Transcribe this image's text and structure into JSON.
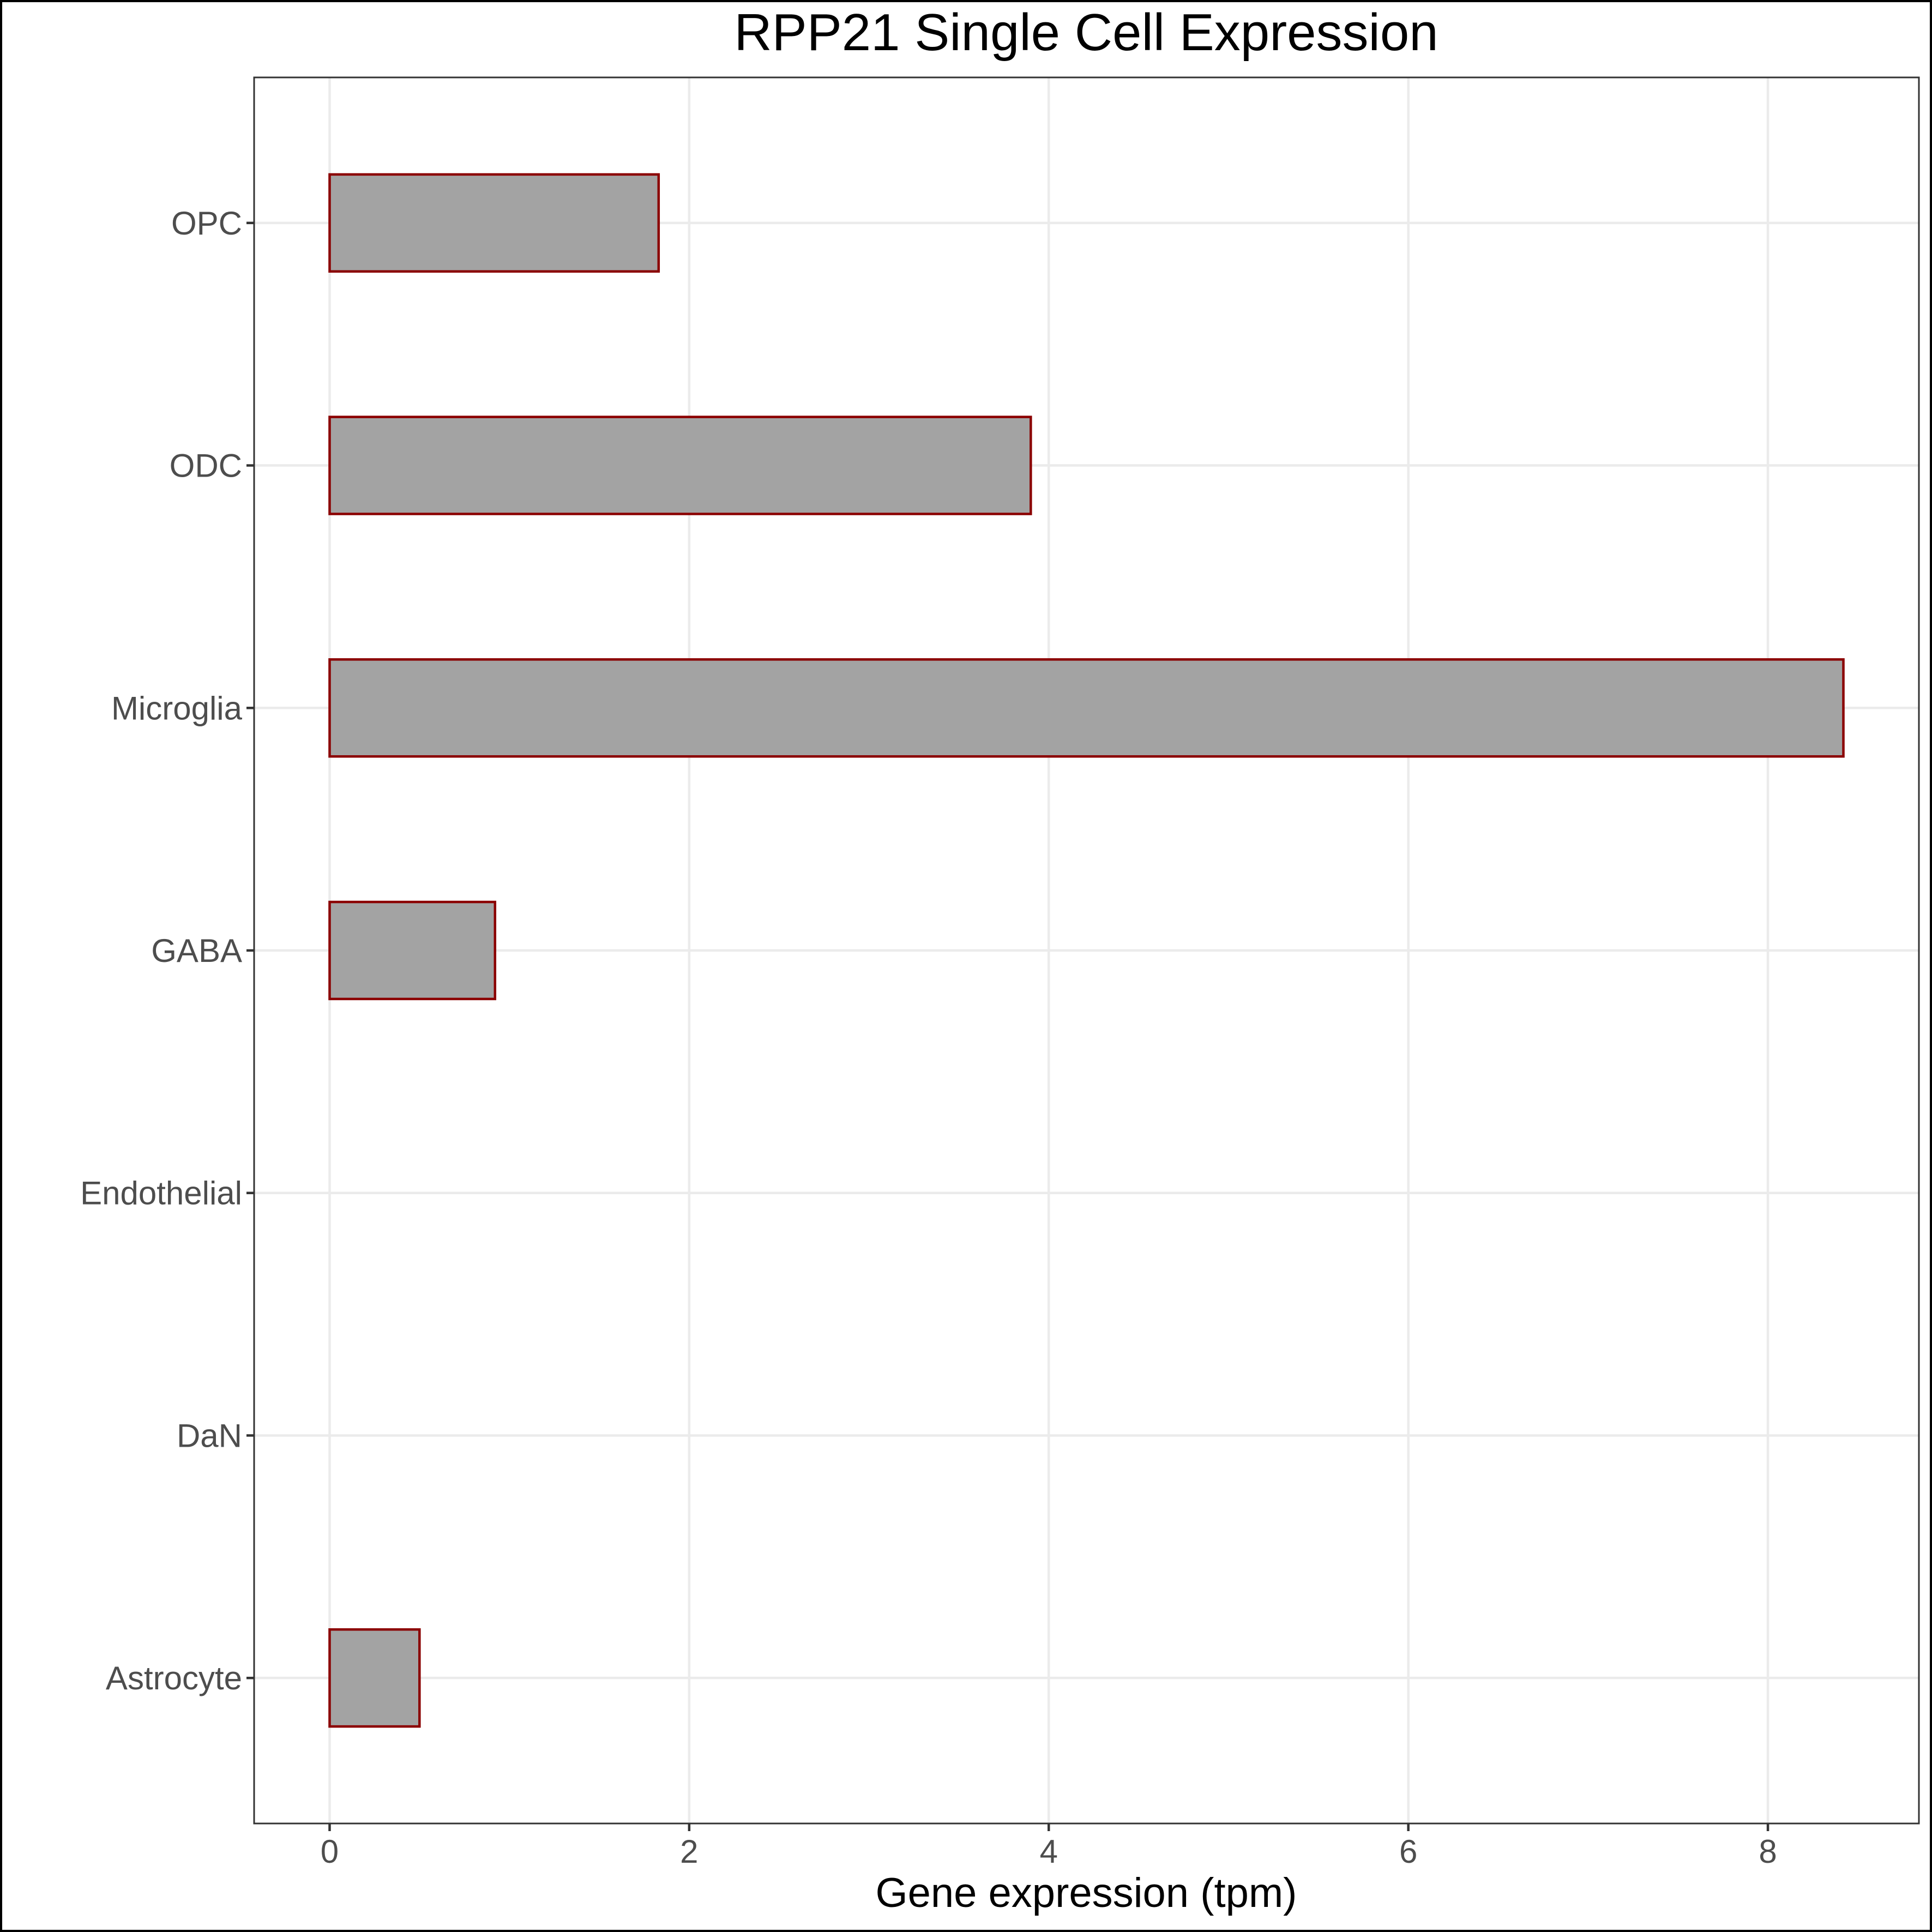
{
  "chart_data": {
    "type": "bar",
    "orientation": "horizontal",
    "title": "RPP21 Single Cell Expression",
    "xlabel": "Gene expression (tpm)",
    "ylabel": "",
    "categories": [
      "Astrocyte",
      "DaN",
      "Endothelial",
      "GABA",
      "Microglia",
      "ODC",
      "OPC"
    ],
    "values": [
      0.5,
      0.0,
      0.0,
      0.92,
      8.42,
      3.9,
      1.83
    ],
    "xlim": [
      -0.42,
      8.84
    ],
    "xticks": [
      0,
      2,
      4,
      6,
      8
    ],
    "xtick_labels": [
      "0",
      "2",
      "4",
      "6",
      "8"
    ],
    "grid": true,
    "legend": "none",
    "colors": {
      "bar_fill": "#a3a3a3",
      "bar_outline": "#8b0000",
      "grid": "#ebebeb",
      "panel_border": "#333333",
      "outer_border": "#000000",
      "tick_label": "#4d4d4d",
      "title": "#000000"
    }
  }
}
